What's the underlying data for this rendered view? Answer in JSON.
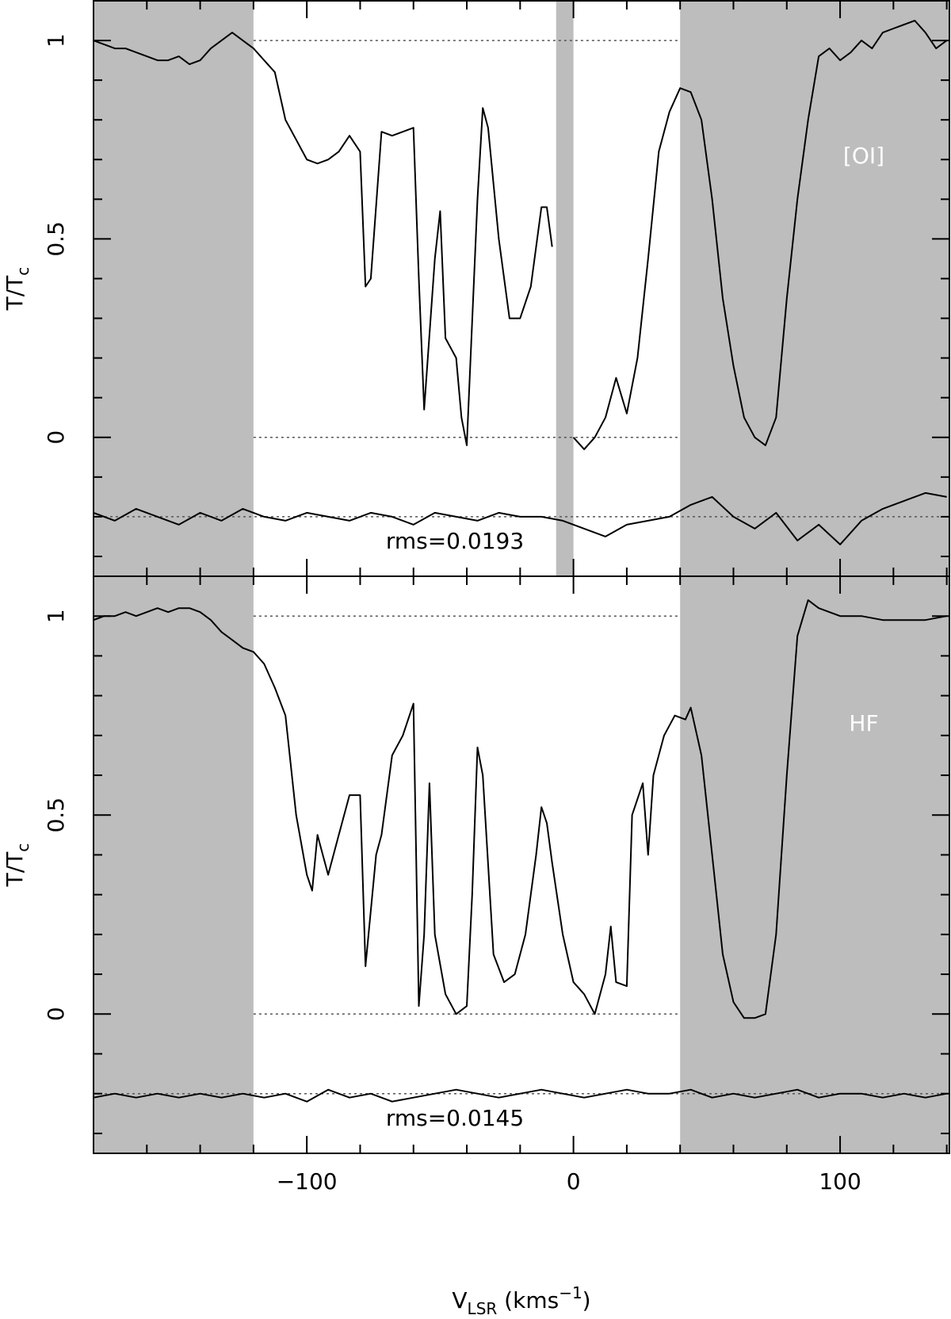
{
  "chart_data": [
    {
      "type": "line",
      "label": "[OI]",
      "annotation": "rms=0.0193",
      "ylabel": {
        "main": "T/T",
        "sub": "c"
      },
      "xlim": [
        -180,
        141
      ],
      "ylim": [
        -0.35,
        1.1
      ],
      "yticks": [
        0,
        0.5,
        1
      ],
      "yminor": [
        -0.3,
        -0.2,
        -0.1,
        0.1,
        0.2,
        0.3,
        0.4,
        0.6,
        0.7,
        0.8,
        0.9,
        1.1
      ],
      "xticks": [
        -100,
        0,
        100
      ],
      "xminor": [
        -160,
        -140,
        -120,
        -80,
        -60,
        -40,
        -20,
        20,
        40,
        60,
        80,
        120,
        140
      ],
      "shaded": [
        [
          -180,
          -120
        ],
        [
          40,
          141
        ],
        [
          -6.5,
          0
        ]
      ],
      "dotted_levels": [
        0,
        1
      ],
      "dotted_range": [
        -120,
        40
      ],
      "residual_level": -0.2,
      "series": [
        {
          "color": "#000000",
          "x": [
            -180,
            -176,
            -172,
            -168,
            -164,
            -160,
            -156,
            -152,
            -148,
            -144,
            -140,
            -136,
            -132,
            -128,
            -124,
            -120,
            -116,
            -112,
            -108,
            -104,
            -100,
            -96,
            -92,
            -88,
            -84,
            -80,
            -78,
            -76,
            -72,
            -68,
            -64,
            -60,
            -58,
            -56,
            -52,
            -50,
            -48,
            -44,
            -42,
            -40,
            -36,
            -34,
            -32,
            -28,
            -24,
            -20,
            -16,
            -12,
            -10,
            -8,
            -4,
            0,
            4,
            8,
            12,
            16,
            20,
            24,
            28,
            32,
            36,
            40,
            44,
            48,
            52,
            56,
            60,
            64,
            68,
            72,
            76,
            80,
            84,
            88,
            92,
            96,
            100,
            104,
            108,
            112,
            116,
            120,
            124,
            128,
            132,
            136,
            140
          ],
          "values": [
            1.0,
            0.99,
            0.98,
            0.98,
            0.97,
            0.96,
            0.95,
            0.95,
            0.96,
            0.94,
            0.95,
            0.98,
            1.0,
            1.02,
            1.0,
            0.98,
            0.95,
            0.92,
            0.8,
            0.75,
            0.7,
            0.69,
            0.7,
            0.72,
            0.76,
            0.72,
            0.38,
            0.4,
            0.77,
            0.76,
            0.77,
            0.78,
            0.4,
            0.07,
            0.45,
            0.57,
            0.25,
            0.2,
            0.05,
            -0.02,
            0.6,
            0.83,
            0.78,
            0.5,
            0.3,
            0.3,
            0.38,
            0.58,
            0.58,
            0.48,
            null,
            0.0,
            -0.03,
            0.0,
            0.05,
            0.15,
            0.06,
            0.2,
            0.45,
            0.72,
            0.82,
            0.88,
            0.87,
            0.8,
            0.6,
            0.35,
            0.18,
            0.05,
            0.0,
            -0.02,
            0.05,
            0.35,
            0.6,
            0.8,
            0.96,
            0.98,
            0.95,
            0.97,
            1.0,
            0.98,
            1.02,
            1.03,
            1.04,
            1.05,
            1.02,
            0.98,
            1.0
          ]
        },
        {
          "color": "#000000",
          "x": [
            -180,
            -172,
            -164,
            -156,
            -148,
            -140,
            -132,
            -124,
            -116,
            -108,
            -100,
            -92,
            -84,
            -76,
            -68,
            -60,
            -52,
            -44,
            -36,
            -28,
            -20,
            -12,
            -4,
            4,
            12,
            20,
            28,
            36,
            44,
            52,
            60,
            68,
            76,
            84,
            92,
            100,
            108,
            116,
            124,
            132,
            140
          ],
          "values": [
            -0.19,
            -0.21,
            -0.18,
            -0.2,
            -0.22,
            -0.19,
            -0.21,
            -0.18,
            -0.2,
            -0.21,
            -0.19,
            -0.2,
            -0.21,
            -0.19,
            -0.2,
            -0.22,
            -0.19,
            -0.2,
            -0.21,
            -0.19,
            -0.2,
            -0.2,
            -0.21,
            -0.23,
            -0.25,
            -0.22,
            -0.21,
            -0.2,
            -0.17,
            -0.15,
            -0.2,
            -0.23,
            -0.19,
            -0.26,
            -0.22,
            -0.27,
            -0.21,
            -0.18,
            -0.16,
            -0.14,
            -0.15
          ]
        }
      ]
    },
    {
      "type": "line",
      "label": "HF",
      "annotation": "rms=0.0145",
      "ylabel": {
        "main": "T/T",
        "sub": "c"
      },
      "xlabel": {
        "main": "V",
        "sub": "LSR",
        "unit": " (kms",
        "sup": "−1",
        "close": ")"
      },
      "xlim": [
        -180,
        141
      ],
      "ylim": [
        -0.35,
        1.1
      ],
      "yticks": [
        0,
        0.5,
        1
      ],
      "yminor": [
        -0.3,
        -0.2,
        -0.1,
        0.1,
        0.2,
        0.3,
        0.4,
        0.6,
        0.7,
        0.8,
        0.9,
        1.1
      ],
      "xticks": [
        {
          "value": -100,
          "label": "−100"
        },
        0,
        100
      ],
      "xminor": [
        -160,
        -140,
        -120,
        -80,
        -60,
        -40,
        -20,
        20,
        40,
        60,
        80,
        120,
        140
      ],
      "shaded": [
        [
          -180,
          -120
        ],
        [
          40,
          141
        ]
      ],
      "dotted_levels": [
        0,
        1
      ],
      "dotted_range": [
        -120,
        40
      ],
      "residual_level": -0.2,
      "series": [
        {
          "color": "#000000",
          "x": [
            -180,
            -176,
            -172,
            -168,
            -164,
            -160,
            -156,
            -152,
            -148,
            -144,
            -140,
            -136,
            -132,
            -128,
            -124,
            -120,
            -116,
            -112,
            -108,
            -104,
            -100,
            -98,
            -96,
            -94,
            -92,
            -88,
            -84,
            -80,
            -78,
            -74,
            -72,
            -68,
            -64,
            -60,
            -58,
            -56,
            -54,
            -52,
            -48,
            -44,
            -40,
            -38,
            -36,
            -34,
            -30,
            -26,
            -22,
            -18,
            -14,
            -12,
            -10,
            -8,
            -4,
            0,
            4,
            8,
            12,
            14,
            16,
            20,
            22,
            26,
            28,
            30,
            34,
            38,
            42,
            44,
            48,
            52,
            56,
            60,
            64,
            68,
            72,
            76,
            80,
            84,
            88,
            92,
            96,
            100,
            108,
            116,
            124,
            132,
            140
          ],
          "values": [
            0.99,
            1.0,
            1.0,
            1.01,
            1.0,
            1.01,
            1.02,
            1.01,
            1.02,
            1.02,
            1.01,
            0.99,
            0.96,
            0.94,
            0.92,
            0.91,
            0.88,
            0.82,
            0.75,
            0.5,
            0.35,
            0.31,
            0.45,
            0.4,
            0.35,
            0.45,
            0.55,
            0.55,
            0.12,
            0.4,
            0.45,
            0.65,
            0.7,
            0.78,
            0.02,
            0.2,
            0.58,
            0.2,
            0.05,
            0.0,
            0.02,
            0.3,
            0.67,
            0.6,
            0.15,
            0.08,
            0.1,
            0.2,
            0.4,
            0.52,
            0.48,
            0.38,
            0.2,
            0.08,
            0.05,
            0.0,
            0.1,
            0.22,
            0.08,
            0.07,
            0.5,
            0.58,
            0.4,
            0.6,
            0.7,
            0.75,
            0.74,
            0.77,
            0.65,
            0.4,
            0.15,
            0.03,
            -0.01,
            -0.01,
            0.0,
            0.2,
            0.6,
            0.95,
            1.04,
            1.02,
            1.01,
            1.0,
            1.0,
            0.99,
            0.99,
            0.99,
            1.0
          ]
        },
        {
          "color": "#000000",
          "x": [
            -180,
            -172,
            -164,
            -156,
            -148,
            -140,
            -132,
            -124,
            -116,
            -108,
            -100,
            -92,
            -84,
            -76,
            -68,
            -60,
            -52,
            -44,
            -36,
            -28,
            -20,
            -12,
            -4,
            4,
            12,
            20,
            28,
            36,
            44,
            52,
            60,
            68,
            76,
            84,
            92,
            100,
            108,
            116,
            124,
            132,
            140
          ],
          "values": [
            -0.21,
            -0.2,
            -0.21,
            -0.2,
            -0.21,
            -0.2,
            -0.21,
            -0.2,
            -0.21,
            -0.2,
            -0.22,
            -0.19,
            -0.21,
            -0.2,
            -0.22,
            -0.21,
            -0.2,
            -0.19,
            -0.2,
            -0.21,
            -0.2,
            -0.19,
            -0.2,
            -0.21,
            -0.2,
            -0.19,
            -0.2,
            -0.2,
            -0.19,
            -0.21,
            -0.2,
            -0.21,
            -0.2,
            -0.19,
            -0.21,
            -0.2,
            -0.2,
            -0.21,
            -0.2,
            -0.21,
            -0.2
          ]
        }
      ]
    }
  ]
}
